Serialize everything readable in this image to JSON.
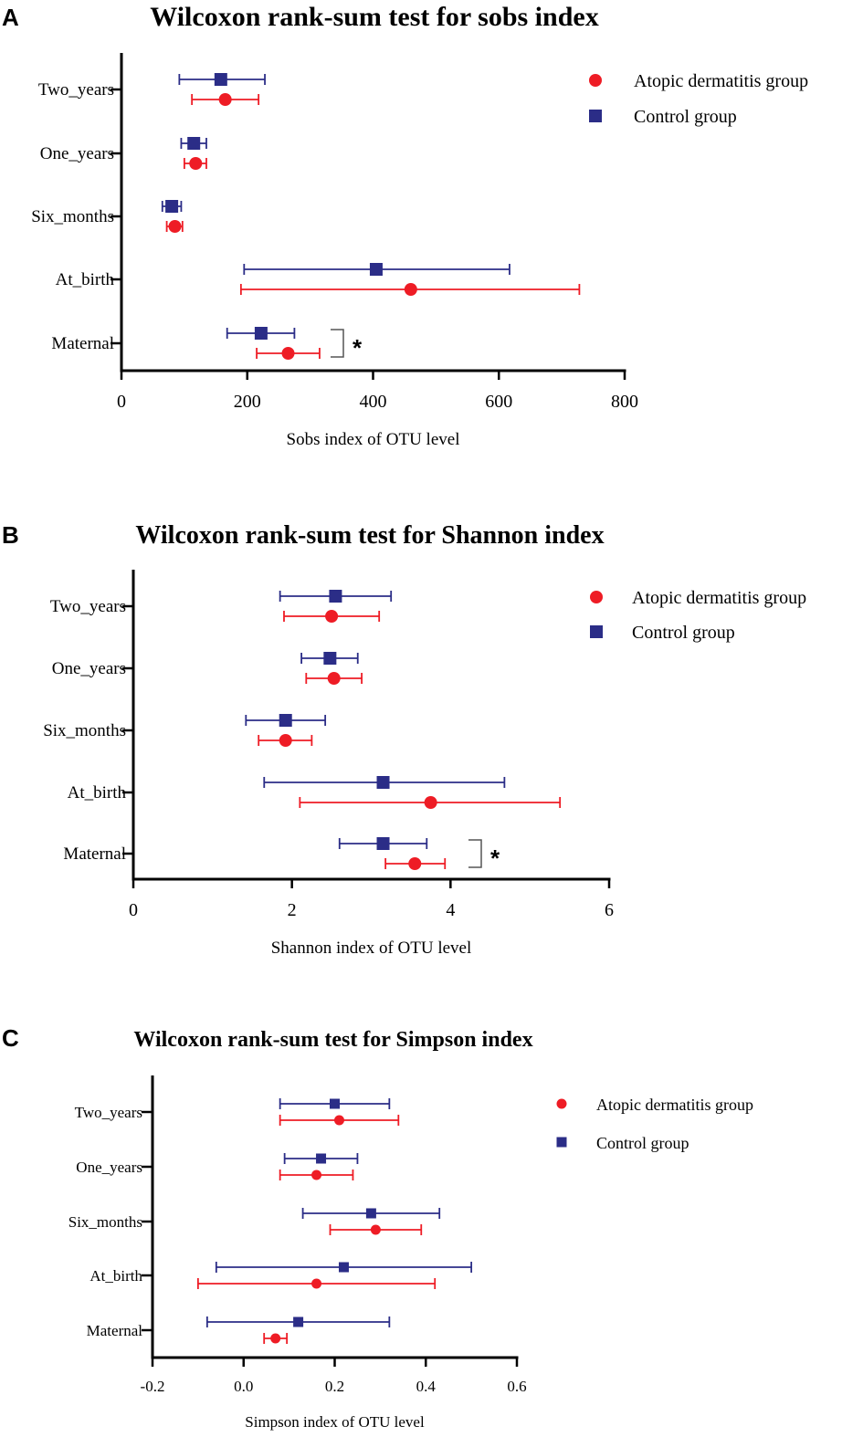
{
  "colors": {
    "ad": "#ee1c25",
    "control": "#2b2d87",
    "axis": "#000000",
    "bracket": "#555555"
  },
  "legend": {
    "ad_label": "Atopic dermatitis group",
    "control_label": "Control group",
    "ad_marker": "circle",
    "control_marker": "square"
  },
  "chart_data": [
    {
      "panel": "A",
      "type": "scatter",
      "title": "Wilcoxon rank-sum test for sobs index",
      "xlabel": "Sobs index of OTU level",
      "ylabel": "",
      "xlim": [
        0,
        800
      ],
      "xticks": [
        0,
        200,
        400,
        600,
        800
      ],
      "xtick_labels": [
        "0",
        "200",
        "400",
        "600",
        "800"
      ],
      "categories": [
        "Two_years",
        "One_years",
        "Six_months",
        "At_birth",
        "Maternal"
      ],
      "series": [
        {
          "name": "Control group",
          "marker": "square",
          "mean": [
            158,
            115,
            80,
            405,
            222
          ],
          "err_low": [
            92,
            95,
            65,
            195,
            168
          ],
          "err_high": [
            228,
            135,
            95,
            617,
            275
          ]
        },
        {
          "name": "Atopic dermatitis group",
          "marker": "circle",
          "mean": [
            165,
            118,
            85,
            460,
            265
          ],
          "err_low": [
            112,
            100,
            72,
            190,
            215
          ],
          "err_high": [
            218,
            135,
            97,
            728,
            315
          ]
        }
      ],
      "significance": [
        {
          "category": "Maternal",
          "label": "*"
        }
      ]
    },
    {
      "panel": "B",
      "type": "scatter",
      "title": "Wilcoxon rank-sum test for Shannon index",
      "xlabel": "Shannon index of OTU level",
      "ylabel": "",
      "xlim": [
        0,
        6
      ],
      "xticks": [
        0,
        2,
        4,
        6
      ],
      "xtick_labels": [
        "0",
        "2",
        "4",
        "6"
      ],
      "categories": [
        "Two_years",
        "One_years",
        "Six_months",
        "At_birth",
        "Maternal"
      ],
      "series": [
        {
          "name": "Control group",
          "marker": "square",
          "mean": [
            2.55,
            2.48,
            1.92,
            3.15,
            3.15
          ],
          "err_low": [
            1.85,
            2.12,
            1.42,
            1.65,
            2.6
          ],
          "err_high": [
            3.25,
            2.83,
            2.42,
            4.68,
            3.7
          ]
        },
        {
          "name": "Atopic dermatitis group",
          "marker": "circle",
          "mean": [
            2.5,
            2.53,
            1.92,
            3.75,
            3.55
          ],
          "err_low": [
            1.9,
            2.18,
            1.58,
            2.1,
            3.18
          ],
          "err_high": [
            3.1,
            2.88,
            2.25,
            5.38,
            3.93
          ]
        }
      ],
      "significance": [
        {
          "category": "Maternal",
          "label": "*"
        }
      ]
    },
    {
      "panel": "C",
      "type": "scatter",
      "title": "Wilcoxon rank-sum test for Simpson index",
      "xlabel": "Simpson index of OTU level",
      "ylabel": "",
      "xlim": [
        -0.2,
        0.6
      ],
      "xticks": [
        -0.2,
        0,
        0.2,
        0.4,
        0.6
      ],
      "xtick_labels": [
        "-0.2",
        "0.0",
        "0.2",
        "0.4",
        "0.6"
      ],
      "categories": [
        "Two_years",
        "One_years",
        "Six_months",
        "At_birth",
        "Maternal"
      ],
      "series": [
        {
          "name": "Control group",
          "marker": "square",
          "mean": [
            0.2,
            0.17,
            0.28,
            0.22,
            0.12
          ],
          "err_low": [
            0.08,
            0.09,
            0.13,
            -0.06,
            -0.08
          ],
          "err_high": [
            0.32,
            0.25,
            0.43,
            0.5,
            0.32
          ]
        },
        {
          "name": "Atopic dermatitis group",
          "marker": "circle",
          "mean": [
            0.21,
            0.16,
            0.29,
            0.16,
            0.07
          ],
          "err_low": [
            0.08,
            0.08,
            0.19,
            -0.1,
            0.045
          ],
          "err_high": [
            0.34,
            0.24,
            0.39,
            0.42,
            0.095
          ]
        }
      ],
      "significance": []
    }
  ]
}
